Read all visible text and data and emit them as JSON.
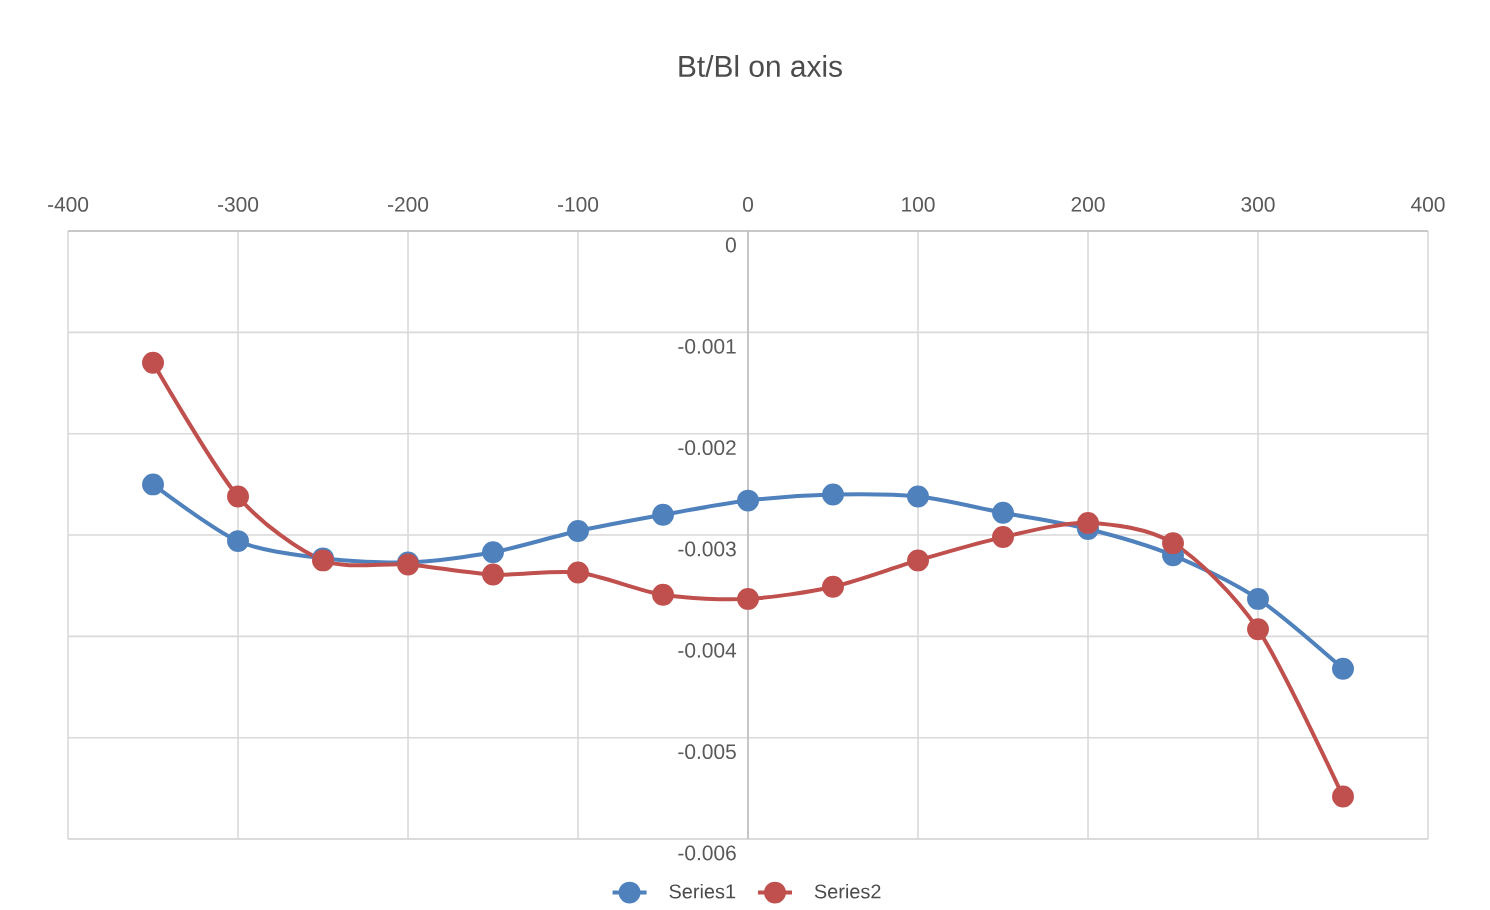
{
  "chart_data": {
    "type": "line",
    "title": "Bt/Bl on axis",
    "x": [
      -350,
      -300,
      -250,
      -200,
      -150,
      -100,
      -50,
      0,
      50,
      100,
      150,
      200,
      250,
      300,
      350
    ],
    "series": [
      {
        "name": "Series1",
        "color": "#4f81bd",
        "values": [
          -0.0025,
          -0.00306,
          -0.00323,
          -0.00327,
          -0.00317,
          -0.00296,
          -0.0028,
          -0.00266,
          -0.0026,
          -0.00262,
          -0.00278,
          -0.00294,
          -0.0032,
          -0.00363,
          -0.00432
        ]
      },
      {
        "name": "Series2",
        "color": "#c0504d",
        "values": [
          -0.0013,
          -0.00262,
          -0.00325,
          -0.00329,
          -0.00339,
          -0.00337,
          -0.00359,
          -0.00363,
          -0.00351,
          -0.00325,
          -0.00302,
          -0.00288,
          -0.00308,
          -0.00393,
          -0.00558
        ]
      }
    ],
    "xlim": [
      -400,
      400
    ],
    "xticks": [
      -400,
      -300,
      -200,
      -100,
      0,
      100,
      200,
      300,
      400
    ],
    "ylim": [
      -0.006,
      0
    ],
    "yticks": [
      -0.006,
      -0.005,
      -0.004,
      -0.003,
      -0.002,
      -0.001,
      0
    ],
    "grid": true,
    "legend": "bottom",
    "marker": "circle",
    "line_style": "solid"
  }
}
